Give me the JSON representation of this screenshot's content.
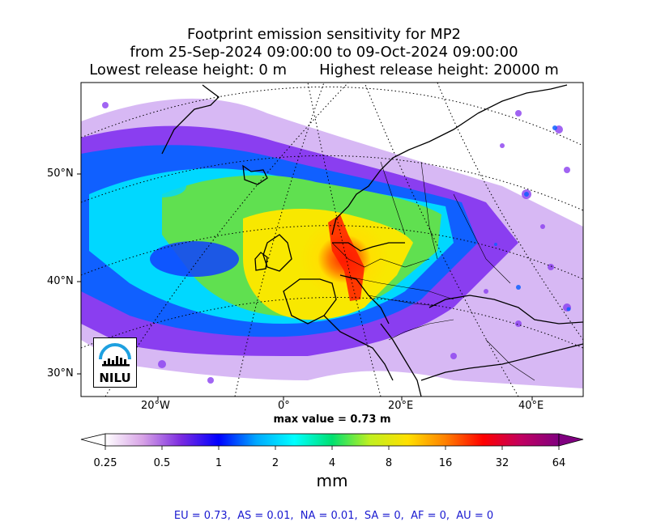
{
  "title": {
    "line1": "Footprint emission sensitivity for MP2",
    "line2": "from 25-Sep-2024 09:00:00 to 09-Oct-2024 09:00:00",
    "line3": "Lowest release height: 0 m       Highest release height: 20000 m"
  },
  "map": {
    "lat_labels": [
      "50°N",
      "40°N",
      "30°N"
    ],
    "lon_labels": [
      "20°W",
      "0°",
      "20°E",
      "40°E"
    ],
    "logo_text": "NILU"
  },
  "max_value_text": "max value = 0.73 m",
  "colorbar": {
    "tick_labels": [
      "0.25",
      "0.5",
      "1",
      "2",
      "4",
      "8",
      "16",
      "32",
      "64"
    ],
    "unit": "mm",
    "colors": [
      "#ffffff",
      "#d7a2e6",
      "#7b2be0",
      "#0000ff",
      "#00a8ff",
      "#00ffff",
      "#00e070",
      "#c0f020",
      "#ffe000",
      "#ff8000",
      "#ff0000",
      "#c00060",
      "#800080"
    ]
  },
  "region_summary": "EU = 0.73,  AS = 0.01,  NA = 0.01,  SA = 0,  AF = 0,  AU = 0"
}
